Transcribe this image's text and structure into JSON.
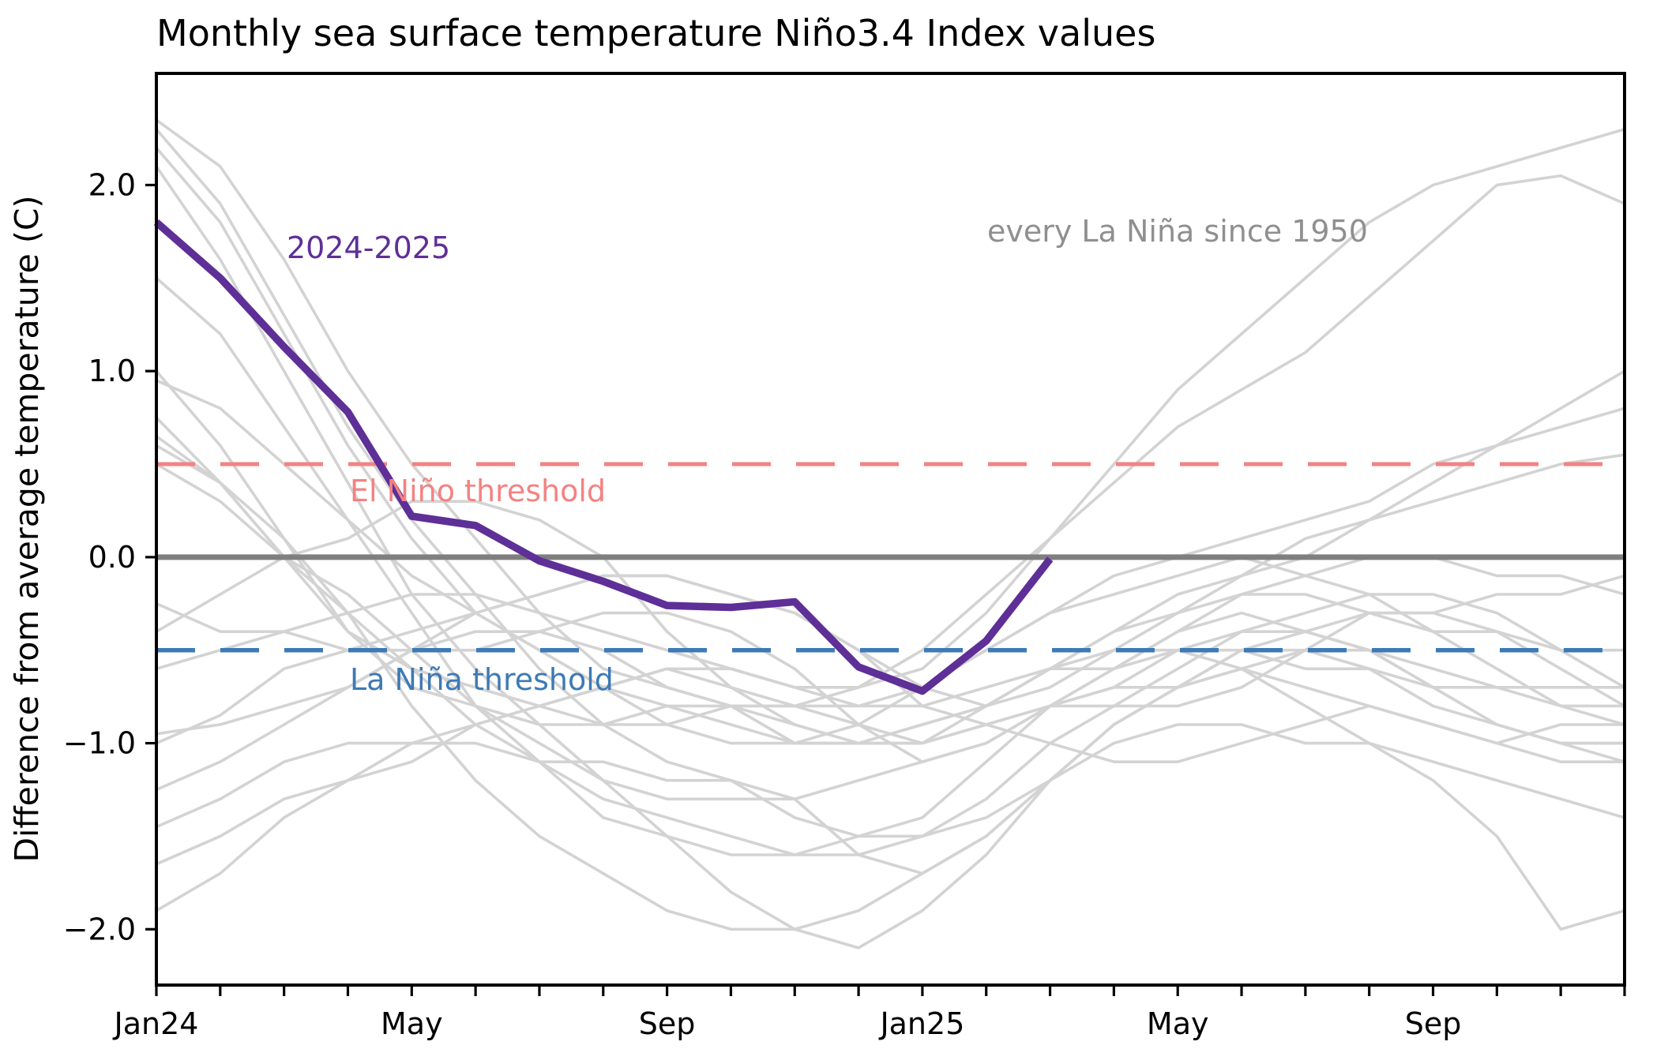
{
  "title": "Monthly sea surface temperature Niño3.4 Index values",
  "ylabel": "Difference from average temperature (C)",
  "annotations": {
    "current_series_label": "2024-2025",
    "ensemble_label": "every La Niña since 1950",
    "el_nino_label": "El Niño threshold",
    "la_nina_label": "La Niña threshold"
  },
  "colors": {
    "current_series": "#5e2f97",
    "ensemble": "#d3d3d3",
    "zero_line": "#7f7f7f",
    "el_nino_threshold": "#f48282",
    "la_nina_threshold": "#3d7ab5",
    "ensemble_text": "#8f8f8f",
    "axis": "#000000"
  },
  "chart_data": {
    "type": "line",
    "title": "Monthly sea surface temperature Niño3.4 Index values",
    "ylabel": "Difference from average temperature (C)",
    "xlabel": "",
    "grid": false,
    "legend_position": "in-plot text annotations",
    "xlim": [
      0,
      23
    ],
    "ylim": [
      -2.3,
      2.6
    ],
    "x_months_span": "Jan 2024 through Dec 2025, one point per month",
    "x_tick_labels": [
      {
        "m": 0,
        "label": "Jan24"
      },
      {
        "m": 4,
        "label": "May"
      },
      {
        "m": 8,
        "label": "Sep"
      },
      {
        "m": 12,
        "label": "Jan25"
      },
      {
        "m": 16,
        "label": "May"
      },
      {
        "m": 20,
        "label": "Sep"
      }
    ],
    "x_minor_tick_every_month": true,
    "y_ticks": [
      {
        "v": 2.0,
        "label": "2.0"
      },
      {
        "v": 1.0,
        "label": "1.0"
      },
      {
        "v": 0.0,
        "label": "0.0"
      },
      {
        "v": -1.0,
        "label": "−1.0"
      },
      {
        "v": -2.0,
        "label": "−2.0"
      }
    ],
    "reference_lines": [
      {
        "name": "zero-line",
        "value": 0.0,
        "style": "solid",
        "color_key": "zero_line",
        "width": 7
      },
      {
        "name": "el-nino-threshold",
        "value": 0.5,
        "style": "dashed",
        "color_key": "el_nino_threshold",
        "width": 5
      },
      {
        "name": "la-nina-threshold",
        "value": -0.5,
        "style": "dashed",
        "color_key": "la_nina_threshold",
        "width": 5.5
      }
    ],
    "highlight_series": {
      "name": "2024-2025",
      "start_month": 0,
      "values": [
        1.8,
        1.5,
        1.13,
        0.78,
        0.22,
        0.17,
        -0.02,
        -0.13,
        -0.26,
        -0.27,
        -0.24,
        -0.59,
        -0.72,
        -0.45,
        -0.01
      ]
    },
    "ensemble_series": [
      {
        "name": "la-nina-01",
        "values": [
          2.1,
          1.6,
          1.0,
          0.4,
          -0.2,
          -0.6,
          -0.9,
          -1.2,
          -1.5,
          -1.8,
          -2.0,
          -2.1,
          -1.9,
          -1.6,
          -1.2,
          -0.9,
          -0.7,
          -0.5,
          -0.5,
          -0.6,
          -0.8,
          -0.9,
          -1.0,
          -1.1
        ]
      },
      {
        "name": "la-nina-02",
        "values": [
          2.3,
          1.9,
          1.3,
          0.7,
          0.2,
          -0.2,
          -0.6,
          -0.9,
          -1.1,
          -1.2,
          -1.4,
          -1.5,
          -1.5,
          -1.4,
          -1.2,
          -1.0,
          -0.9,
          -0.9,
          -1.0,
          -1.0,
          -1.1,
          -1.2,
          -1.3,
          -1.4
        ]
      },
      {
        "name": "la-nina-03",
        "values": [
          2.2,
          1.8,
          1.2,
          0.6,
          0.1,
          -0.3,
          -0.5,
          -0.7,
          -0.9,
          -1.0,
          -1.0,
          -0.9,
          -0.7,
          -0.5,
          -0.3,
          -0.1,
          0.0,
          0.1,
          0.2,
          0.3,
          0.5,
          0.6,
          0.7,
          0.8
        ]
      },
      {
        "name": "la-nina-04",
        "values": [
          2.35,
          2.1,
          1.6,
          1.0,
          0.5,
          0.1,
          -0.3,
          -0.6,
          -0.7,
          -0.8,
          -0.8,
          -0.8,
          -0.7,
          -0.5,
          -0.3,
          -0.2,
          -0.1,
          0.0,
          -0.1,
          -0.2,
          -0.4,
          -0.6,
          -0.8,
          -0.9
        ]
      },
      {
        "name": "la-nina-05",
        "values": [
          1.5,
          1.2,
          0.7,
          0.2,
          -0.3,
          -0.8,
          -1.1,
          -1.4,
          -1.5,
          -1.6,
          -1.6,
          -1.5,
          -1.4,
          -1.1,
          -0.8,
          -0.6,
          -0.4,
          -0.3,
          -0.4,
          -0.5,
          -0.7,
          -0.9,
          -1.0,
          -1.0
        ]
      },
      {
        "name": "la-nina-06",
        "values": [
          0.6,
          0.4,
          0.1,
          -0.3,
          -0.8,
          -1.2,
          -1.5,
          -1.7,
          -1.9,
          -2.0,
          -2.0,
          -1.9,
          -1.7,
          -1.5,
          -1.2,
          -0.9,
          -0.7,
          -0.5,
          -0.4,
          -0.3,
          -0.3,
          -0.2,
          -0.2,
          -0.1
        ]
      },
      {
        "name": "la-nina-07",
        "values": [
          0.65,
          0.4,
          0.0,
          -0.4,
          -0.6,
          -0.7,
          -0.8,
          -0.9,
          -0.9,
          -0.8,
          -0.9,
          -1.0,
          -1.0,
          -0.9,
          -0.8,
          -0.7,
          -0.7,
          -0.6,
          -0.7,
          -0.8,
          -0.9,
          -1.0,
          -1.1,
          -1.1
        ]
      },
      {
        "name": "la-nina-08",
        "values": [
          1.0,
          0.6,
          0.1,
          -0.4,
          -0.7,
          -0.8,
          -0.9,
          -0.9,
          -0.8,
          -0.8,
          -0.8,
          -0.7,
          -0.5,
          -0.2,
          0.1,
          0.4,
          0.7,
          0.9,
          1.1,
          1.4,
          1.7,
          2.0,
          2.05,
          1.9
        ]
      },
      {
        "name": "la-nina-09",
        "values": [
          -0.6,
          -0.5,
          -0.4,
          -0.3,
          -0.2,
          -0.2,
          -0.3,
          -0.4,
          -0.5,
          -0.6,
          -0.7,
          -0.7,
          -0.6,
          -0.3,
          0.1,
          0.5,
          0.9,
          1.2,
          1.5,
          1.8,
          2.0,
          2.1,
          2.2,
          2.3
        ]
      },
      {
        "name": "la-nina-10",
        "values": [
          -1.65,
          -1.5,
          -1.3,
          -1.2,
          -1.1,
          -0.9,
          -0.8,
          -0.7,
          -0.6,
          -0.6,
          -0.7,
          -0.8,
          -0.8,
          -0.7,
          -0.6,
          -0.6,
          -0.5,
          -0.5,
          -0.6,
          -0.6,
          -0.7,
          -0.7,
          -0.8,
          -0.8
        ]
      },
      {
        "name": "la-nina-11",
        "values": [
          -1.9,
          -1.7,
          -1.4,
          -1.2,
          -1.0,
          -0.9,
          -0.8,
          -0.7,
          -0.6,
          -0.7,
          -0.8,
          -0.9,
          -1.0,
          -0.8,
          -0.6,
          -0.5,
          -0.5,
          -0.6,
          -0.8,
          -1.0,
          -1.2,
          -1.5,
          -2.0,
          -1.9
        ]
      },
      {
        "name": "la-nina-12",
        "values": [
          -1.45,
          -1.3,
          -1.1,
          -1.0,
          -1.0,
          -1.0,
          -1.1,
          -1.1,
          -1.2,
          -1.2,
          -1.3,
          -1.6,
          -1.7,
          -1.5,
          -1.2,
          -0.9,
          -0.7,
          -0.6,
          -0.5,
          -0.5,
          -0.6,
          -0.7,
          -0.7,
          -0.7
        ]
      },
      {
        "name": "la-nina-13",
        "values": [
          -1.25,
          -1.1,
          -0.9,
          -0.7,
          -0.5,
          -0.3,
          -0.2,
          -0.1,
          -0.1,
          -0.2,
          -0.3,
          -0.5,
          -0.7,
          -0.8,
          -0.7,
          -0.5,
          -0.3,
          -0.1,
          0.1,
          0.2,
          0.3,
          0.4,
          0.5,
          0.55
        ]
      },
      {
        "name": "la-nina-14",
        "values": [
          -0.95,
          -0.9,
          -0.8,
          -0.7,
          -0.5,
          -0.4,
          -0.4,
          -0.5,
          -0.7,
          -0.8,
          -1.0,
          -1.0,
          -1.0,
          -0.9,
          -1.0,
          -1.1,
          -1.1,
          -1.0,
          -0.9,
          -0.8,
          -0.9,
          -1.0,
          -0.9,
          -0.9
        ]
      },
      {
        "name": "la-nina-15",
        "values": [
          -1.0,
          -0.85,
          -0.6,
          -0.5,
          -0.4,
          -0.3,
          -0.2,
          -0.1,
          -0.1,
          -0.2,
          -0.3,
          -0.5,
          -0.8,
          -0.9,
          -0.8,
          -0.6,
          -0.4,
          -0.2,
          -0.1,
          0.0,
          0.0,
          -0.1,
          -0.1,
          -0.2
        ]
      },
      {
        "name": "la-nina-16",
        "values": [
          0.95,
          0.8,
          0.5,
          0.2,
          -0.1,
          -0.3,
          -0.5,
          -0.7,
          -0.8,
          -0.9,
          -1.0,
          -1.0,
          -0.9,
          -0.8,
          -0.6,
          -0.4,
          -0.3,
          -0.2,
          -0.2,
          -0.3,
          -0.4,
          -0.4,
          -0.5,
          -0.5
        ]
      },
      {
        "name": "la-nina-17",
        "values": [
          0.75,
          0.4,
          0.0,
          -0.3,
          -0.6,
          -0.9,
          -1.1,
          -1.3,
          -1.4,
          -1.5,
          -1.6,
          -1.6,
          -1.5,
          -1.3,
          -1.0,
          -0.8,
          -0.6,
          -0.4,
          -0.3,
          -0.2,
          -0.2,
          -0.3,
          -0.5,
          -0.7
        ]
      },
      {
        "name": "la-nina-18",
        "values": [
          -0.25,
          -0.4,
          -0.4,
          -0.5,
          -0.5,
          -0.5,
          -0.4,
          -0.3,
          -0.3,
          -0.4,
          -0.6,
          -0.9,
          -1.1,
          -1.0,
          -0.8,
          -0.8,
          -0.8,
          -0.7,
          -0.5,
          -0.3,
          -0.3,
          -0.4,
          -0.6,
          -0.8
        ]
      },
      {
        "name": "la-nina-19",
        "values": [
          -0.4,
          -0.2,
          0.0,
          0.1,
          0.3,
          0.3,
          0.2,
          0.0,
          -0.4,
          -0.7,
          -0.9,
          -1.0,
          -0.9,
          -0.8,
          -0.6,
          -0.4,
          -0.2,
          -0.1,
          0.0,
          0.2,
          0.4,
          0.6,
          0.8,
          1.0
        ]
      },
      {
        "name": "la-nina-20",
        "values": [
          0.5,
          0.3,
          0.0,
          -0.2,
          -0.5,
          -0.8,
          -1.0,
          -1.2,
          -1.3,
          -1.3,
          -1.3,
          -1.2,
          -1.1,
          -1.0,
          -0.8,
          -0.7,
          -0.5,
          -0.4,
          -0.4,
          -0.5,
          -0.7,
          -0.9,
          -1.0,
          -1.0
        ]
      }
    ]
  }
}
